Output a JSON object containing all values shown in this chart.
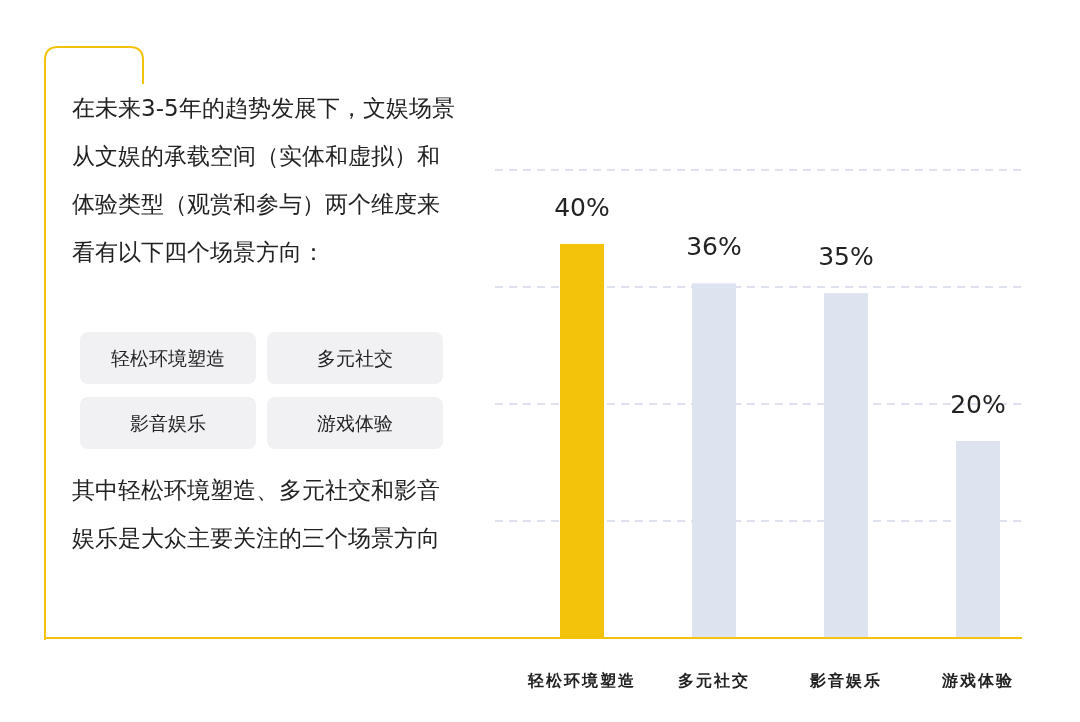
{
  "chart_data": [
    {
      "type": "other",
      "annotations": [
        "在未来3-5年的趋势发展下，文娱场景从文娱的承载空间（实体和虚拟）和体验类型（观赏和参与）两个维度来看有以下四个场景方向：",
        "轻松环境塑造",
        "多元社交",
        "影音娱乐",
        "游戏体验",
        "其中轻松环境塑造、多元社交和影音娱乐是大众主要关注的三个场景方向"
      ]
    },
    {
      "type": "bar",
      "categories": [
        "轻松环境塑造",
        "多元社交",
        "影音娱乐",
        "游戏体验"
      ],
      "values": [
        40,
        36,
        35,
        20
      ],
      "colors": [
        "#f2c30a",
        "#dde3ef",
        "#dde3ef",
        "#dde3ef"
      ],
      "value_labels": [
        "40%",
        "36%",
        "35%",
        "20%"
      ],
      "ylim": [
        0,
        47.5
      ],
      "yticks": [
        {
          "value": 11.875,
          "label": null
        },
        {
          "value": 23.75,
          "label": null
        },
        {
          "value": 35.625,
          "label": null
        },
        {
          "value": 47.5,
          "label": null
        }
      ],
      "grid": "y",
      "tick_labels": "x"
    }
  ]
}
